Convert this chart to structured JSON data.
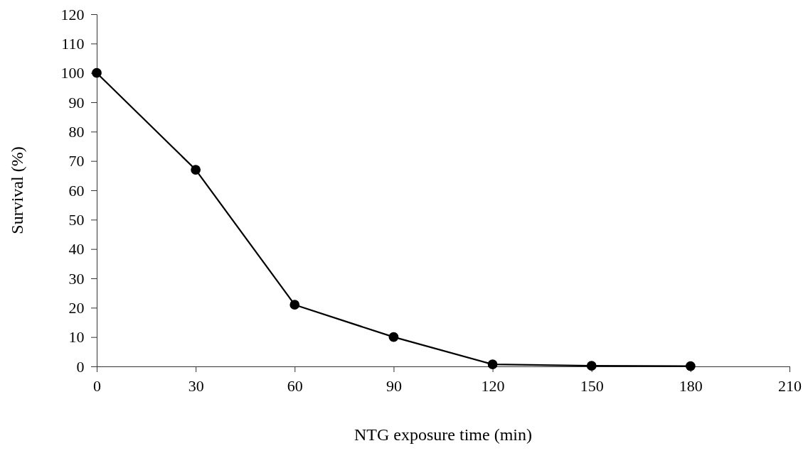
{
  "chart_data": {
    "type": "line",
    "xlabel": "NTG exposure time (min)",
    "ylabel": "Survival (%)",
    "x": [
      0,
      30,
      60,
      90,
      120,
      150,
      180
    ],
    "series": [
      {
        "color": "#000000",
        "values": [
          100,
          67,
          21,
          10,
          0.7,
          0.2,
          0.1
        ]
      }
    ],
    "xlim": [
      0,
      210
    ],
    "xticks": [
      0,
      30,
      60,
      90,
      120,
      150,
      180,
      210
    ],
    "ylim": [
      0,
      120
    ],
    "yticks": [
      0,
      10,
      20,
      30,
      40,
      50,
      60,
      70,
      80,
      90,
      100,
      110,
      120
    ],
    "marker": "circle",
    "line_style": "solid"
  }
}
